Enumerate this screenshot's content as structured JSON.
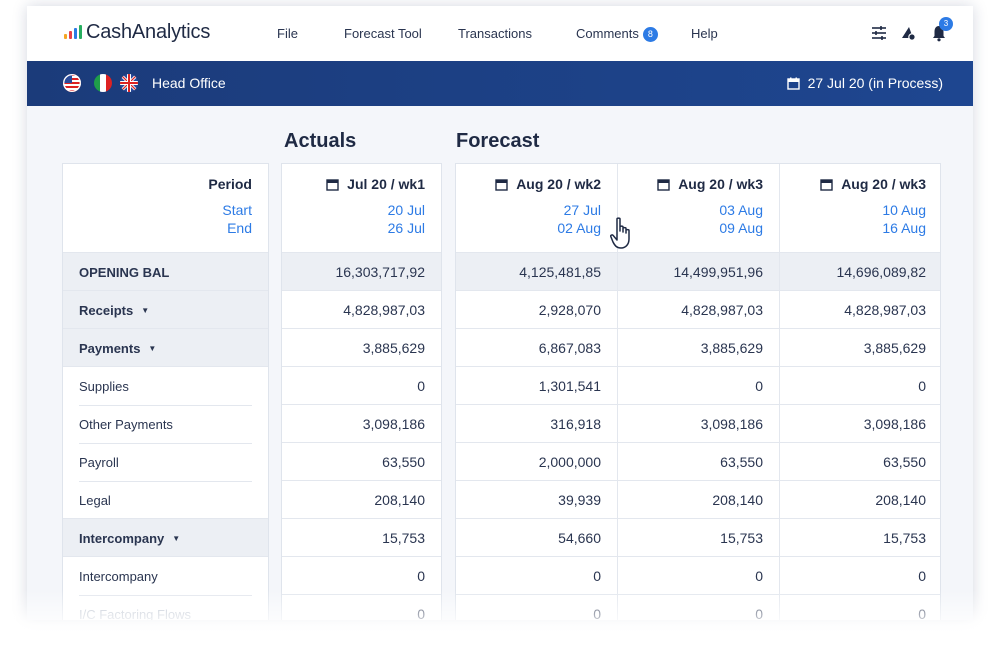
{
  "app": {
    "name": "CashAnalytics",
    "logo_colors": [
      "#f5a623",
      "#e8414a",
      "#2d7be5",
      "#27ae60"
    ]
  },
  "nav": {
    "items": [
      {
        "label": "File"
      },
      {
        "label": "Forecast Tool"
      },
      {
        "label": "Transactions"
      },
      {
        "label": "Comments",
        "badge": "8"
      },
      {
        "label": "Help"
      }
    ],
    "icons": [
      "sliders-icon",
      "bell-settings-icon",
      "bell-icon"
    ],
    "notification_count": "3"
  },
  "header_bar": {
    "flags": [
      "us-flag-icon",
      "italy-flag-icon",
      "uk-flag-icon"
    ],
    "office": "Head Office",
    "date_status": "27 Jul 20 (in Process)"
  },
  "sections": {
    "actuals": "Actuals",
    "forecast": "Forecast"
  },
  "period_header": {
    "label": "Period",
    "start": "Start",
    "end": "End"
  },
  "columns": [
    {
      "title": "Jul 20 / wk1",
      "start": "20 Jul",
      "end": "26 Jul"
    },
    {
      "title": "Aug 20 / wk2",
      "start": "27 Jul",
      "end": "02 Aug"
    },
    {
      "title": "Aug 20 / wk3",
      "start": "03 Aug",
      "end": "09 Aug"
    },
    {
      "title": "Aug 20 / wk3",
      "start": "10 Aug",
      "end": "16 Aug"
    }
  ],
  "rows": [
    {
      "label": "OPENING BAL",
      "values": [
        "16,303,717,92",
        "4,125,481,85",
        "14,499,951,96",
        "14,696,089,82"
      ]
    },
    {
      "label": "Receipts",
      "values": [
        "4,828,987,03",
        "2,928,070",
        "4,828,987,03",
        "4,828,987,03"
      ]
    },
    {
      "label": "Payments",
      "values": [
        "3,885,629",
        "6,867,083",
        "3,885,629",
        "3,885,629"
      ]
    },
    {
      "label": "Supplies",
      "values": [
        "0",
        "1,301,541",
        "0",
        "0"
      ]
    },
    {
      "label": "Other Payments",
      "values": [
        "3,098,186",
        "316,918",
        "3,098,186",
        "3,098,186"
      ]
    },
    {
      "label": "Payroll",
      "values": [
        "63,550",
        "2,000,000",
        "63,550",
        "63,550"
      ]
    },
    {
      "label": "Legal",
      "values": [
        "208,140",
        "39,939",
        "208,140",
        "208,140"
      ]
    },
    {
      "label": "Intercompany",
      "values": [
        "15,753",
        "54,660",
        "15,753",
        "15,753"
      ]
    },
    {
      "label": "Intercompany",
      "values": [
        "0",
        "0",
        "0",
        "0"
      ]
    },
    {
      "label": "I/C Factoring Flows",
      "values": [
        "0",
        "0",
        "0",
        "0"
      ]
    }
  ]
}
